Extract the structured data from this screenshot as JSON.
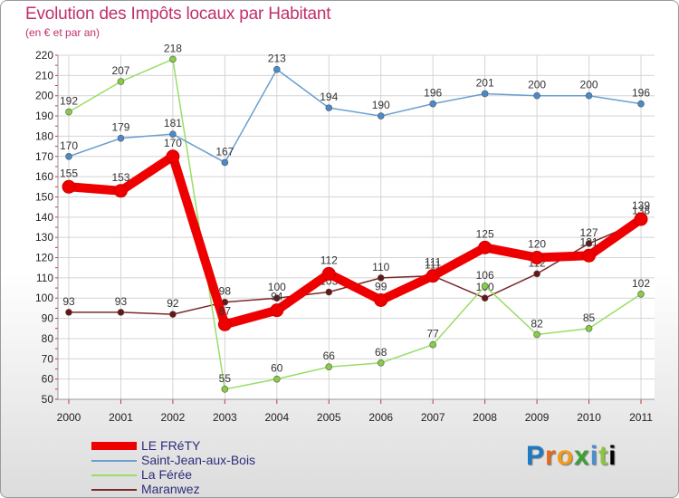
{
  "chart_data": {
    "type": "line",
    "title": "Evolution des Impôts locaux par Habitant",
    "subtitle": "(en € et par an)",
    "xlabel": "",
    "ylabel": "",
    "categories": [
      "2000",
      "2001",
      "2002",
      "2003",
      "2004",
      "2005",
      "2006",
      "2007",
      "2008",
      "2009",
      "2010",
      "2011"
    ],
    "ylim": [
      50,
      220
    ],
    "yticks": [
      50,
      60,
      70,
      80,
      90,
      100,
      110,
      120,
      130,
      140,
      150,
      160,
      170,
      180,
      190,
      200,
      210,
      220
    ],
    "grid": true,
    "legend_position": "bottom-left",
    "series": [
      {
        "name": "Maranwez",
        "color": "#7a2a2a",
        "marker": "#6a1515",
        "width": "thin",
        "values": [
          93,
          93,
          92,
          98,
          100,
          103,
          110,
          111,
          100,
          112,
          127,
          138
        ],
        "labels": [
          "93",
          "93",
          "92",
          "98",
          "100",
          "103",
          "110",
          "111",
          "100",
          "112",
          "127",
          "138"
        ]
      },
      {
        "name": "La Férée",
        "color": "#99dd66",
        "marker": "#88cc44",
        "width": "thin",
        "values": [
          192,
          207,
          218,
          55,
          60,
          66,
          68,
          77,
          106,
          82,
          85,
          102
        ],
        "labels": [
          "192",
          "207",
          "218",
          "55",
          "60",
          "66",
          "68",
          "77",
          "106",
          "82",
          "85",
          "102"
        ]
      },
      {
        "name": "Saint-Jean-aux-Bois",
        "color": "#6a9fd0",
        "marker": "#4a8acb",
        "width": "thin",
        "values": [
          170,
          179,
          181,
          167,
          213,
          194,
          190,
          196,
          201,
          200,
          200,
          196
        ],
        "labels": [
          "170",
          "179",
          "181",
          "167",
          "213",
          "194",
          "190",
          "196",
          "201",
          "200",
          "200",
          "196"
        ]
      },
      {
        "name": "LE FRéTY",
        "color": "#ee0000",
        "marker": "#ee0000",
        "width": "thick",
        "values": [
          155,
          153,
          170,
          87,
          94,
          112,
          99,
          111,
          125,
          120,
          121,
          139
        ],
        "labels": [
          "155",
          "153",
          "170",
          "87",
          "94",
          "112",
          "99",
          "111",
          "125",
          "120",
          "121",
          "139"
        ]
      }
    ]
  },
  "legend": {
    "items": [
      {
        "label": "LE FRéTY",
        "color": "#ee0000"
      },
      {
        "label": "Saint-Jean-aux-Bois",
        "color": "#6a9fd0"
      },
      {
        "label": "La Férée",
        "color": "#99dd66"
      },
      {
        "label": "Maranwez",
        "color": "#7a2a2a"
      }
    ]
  },
  "logo": {
    "letters": [
      "P",
      "r",
      "o",
      "x",
      "i",
      "t",
      "i"
    ]
  }
}
